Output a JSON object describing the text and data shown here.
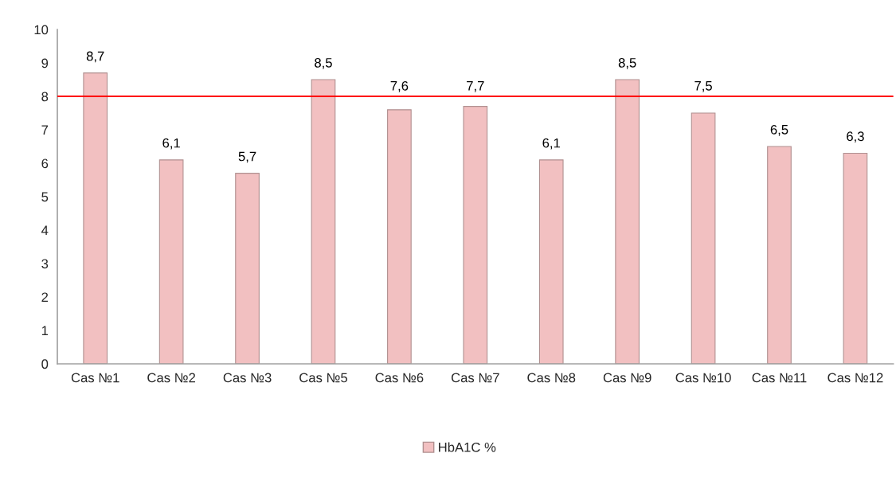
{
  "chart_data": {
    "type": "bar",
    "categories": [
      "Cas №1",
      "Cas №2",
      "Cas №3",
      "Cas №5",
      "Cas №6",
      "Cas №7",
      "Cas №8",
      "Cas №9",
      "Cas №10",
      "Cas №11",
      "Cas №12"
    ],
    "series": [
      {
        "name": "HbA1C %",
        "color": "#f2c0c1",
        "values": [
          8.7,
          6.1,
          5.7,
          8.5,
          7.6,
          7.7,
          6.1,
          8.5,
          7.5,
          6.5,
          6.3
        ],
        "value_labels": [
          "8,7",
          "6,1",
          "5,7",
          "8,5",
          "7,6",
          "7,7",
          "6,1",
          "8,5",
          "7,5",
          "6,5",
          "6,3"
        ]
      }
    ],
    "ylim": [
      0,
      10
    ],
    "yticks": [
      0,
      1,
      2,
      3,
      4,
      5,
      6,
      7,
      8,
      9,
      10
    ],
    "ref_lines": [
      {
        "axis": "y",
        "value": 8,
        "color": "#ff0000",
        "line_style": "solid"
      }
    ],
    "grid": false,
    "legend": "bottom"
  }
}
